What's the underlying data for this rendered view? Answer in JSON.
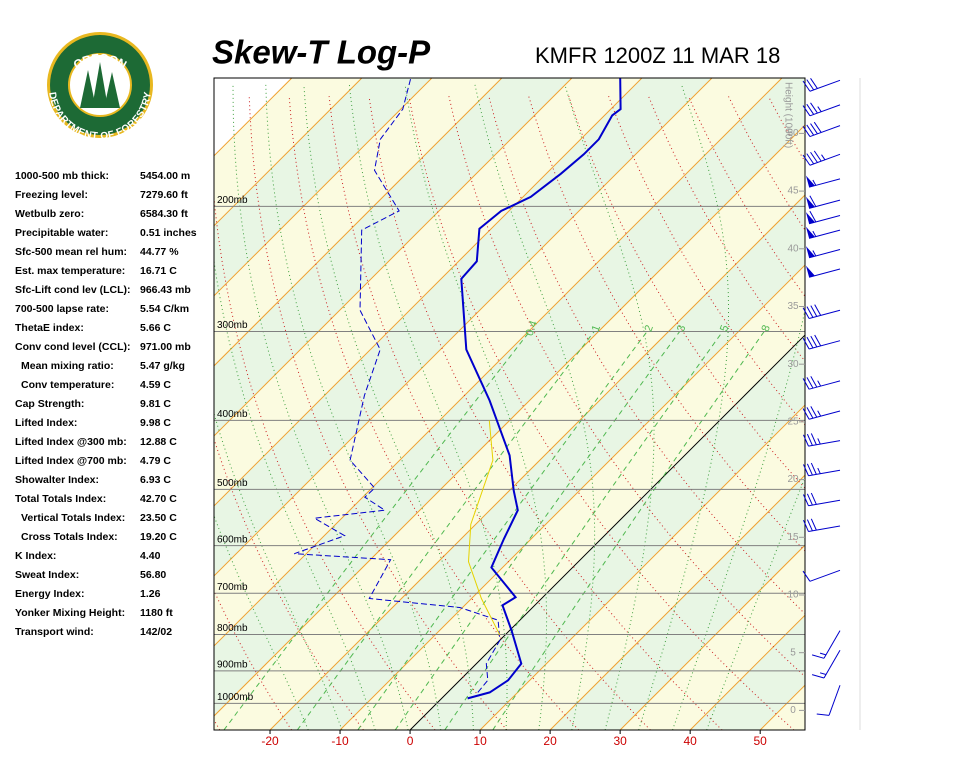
{
  "logo": {
    "top": "OREGON",
    "bottom": "DEPARTMENT OF FORESTRY"
  },
  "stats": [
    {
      "label": "1000-500 mb thick:",
      "value": "5454.00 m"
    },
    {
      "label": "Freezing level:",
      "value": "7279.60 ft"
    },
    {
      "label": "Wetbulb zero:",
      "value": "6584.30 ft"
    },
    {
      "label": "Precipitable water:",
      "value": "0.51 inches"
    },
    {
      "label": "Sfc-500 mean rel hum:",
      "value": "44.77 %"
    },
    {
      "label": "Est. max temperature:",
      "value": "16.71 C"
    },
    {
      "label": "Sfc-Lift cond lev (LCL):",
      "value": "966.43 mb"
    },
    {
      "label": "700-500 lapse rate:",
      "value": "5.54 C/km"
    },
    {
      "label": "ThetaE index:",
      "value": "5.66 C"
    },
    {
      "label": "Conv cond level (CCL):",
      "value": "971.00 mb"
    },
    {
      "label": "Mean mixing ratio:",
      "value": "5.47 g/kg"
    },
    {
      "label": "Conv temperature:",
      "value": "4.59 C"
    },
    {
      "label": "Cap Strength:",
      "value": "9.81 C"
    },
    {
      "label": "Lifted Index:",
      "value": "9.98 C"
    },
    {
      "label": "Lifted Index @300 mb:",
      "value": "12.88 C"
    },
    {
      "label": "Lifted Index @700 mb:",
      "value": "4.79 C"
    },
    {
      "label": "Showalter Index:",
      "value": "6.93 C"
    },
    {
      "label": "Total Totals Index:",
      "value": "42.70 C"
    },
    {
      "label": "Vertical Totals Index:",
      "value": "23.50 C"
    },
    {
      "label": "Cross Totals Index:",
      "value": "19.20 C"
    },
    {
      "label": "K Index:",
      "value": "4.40"
    },
    {
      "label": "Sweat Index:",
      "value": "56.80"
    },
    {
      "label": "Energy Index:",
      "value": "1.26"
    },
    {
      "label": "Yonker Mixing Height:",
      "value": "1180 ft"
    },
    {
      "label": "Transport wind:",
      "value": "142/02"
    }
  ],
  "chart_data": {
    "type": "skew-t",
    "title": "Skew-T Log-P",
    "subtitle": "KMFR 1200Z 11 MAR 18",
    "xlim": [
      -28,
      56.4
    ],
    "xticks": [
      -20,
      -10,
      0,
      10,
      20,
      30,
      40,
      50
    ],
    "ylim": [
      1090,
      132
    ],
    "log_y": true,
    "yticks": [
      {
        "value": 1000,
        "label": "1000mb"
      },
      {
        "value": 900,
        "label": "900mb"
      },
      {
        "value": 800,
        "label": "800mb"
      },
      {
        "value": 700,
        "label": "700mb"
      },
      {
        "value": 600,
        "label": "600mb"
      },
      {
        "value": 500,
        "label": "500mb"
      },
      {
        "value": 400,
        "label": "400mb"
      },
      {
        "value": 300,
        "label": "300mb"
      },
      {
        "value": 200,
        "label": "200mb"
      }
    ],
    "y2label": "Height (1000ft)",
    "y2lim": [
      -1.7,
      54.8
    ],
    "y2ticks": [
      0,
      5,
      10,
      15,
      20,
      25,
      30,
      35,
      40,
      45,
      50
    ],
    "mixing_ratios": [
      0.4,
      1,
      2,
      3,
      5,
      8
    ],
    "series": [
      {
        "color": "#0000cc",
        "style": "solid",
        "pressure": [
          984,
          965,
          928,
          879,
          790,
          728,
          709,
          644,
          587,
          535,
          502,
          448,
          375,
          318,
          253,
          239,
          215,
          203,
          194,
          180,
          169,
          161,
          149,
          146,
          132
        ],
        "temperature": [
          3.7,
          6.0,
          6.9,
          6.4,
          0.3,
          -4.6,
          -3.9,
          -11.6,
          -13.9,
          -16.0,
          -19.4,
          -25.0,
          -35.7,
          -46.3,
          -57.1,
          -57.4,
          -61.7,
          -61.1,
          -58.9,
          -57.9,
          -57.4,
          -57.4,
          -58.9,
          -58.6,
          -63.1
        ]
      },
      {
        "color": "#0000cc",
        "style": "dashed",
        "pressure": [
          965,
          928,
          879,
          815,
          764,
          733,
          712,
          628,
          616,
          581,
          549,
          535,
          513,
          498,
          455,
          369,
          318,
          280,
          216,
          203,
          178,
          161,
          146,
          132
        ],
        "temperature": [
          4.3,
          4.0,
          1.4,
          0.0,
          -3.1,
          -10.4,
          -24.6,
          -27.1,
          -41.7,
          -37.1,
          -43.9,
          -35.0,
          -39.7,
          -39.6,
          -47.1,
          -54.3,
          -58.6,
          -67.1,
          -78.3,
          -75.7,
          -85.0,
          -88.6,
          -89.7,
          -93.0
        ]
      },
      {
        "color": "#e6d200",
        "style": "solid",
        "pressure": [
          802,
          712,
          632,
          560,
          455,
          400
        ],
        "temperature": [
          -0.7,
          -8.6,
          -15.7,
          -20.7,
          -26.7,
          -32.9
        ]
      }
    ],
    "wind": {
      "pressure": [
        133,
        144,
        154,
        169,
        183,
        196,
        206,
        216,
        230,
        245,
        280,
        309,
        352,
        388,
        427,
        470,
        518,
        563,
        650,
        790,
        842,
        943
      ],
      "direction": [
        250,
        250,
        250,
        250,
        255,
        255,
        255,
        255,
        255,
        255,
        255,
        255,
        255,
        255,
        260,
        260,
        260,
        260,
        250,
        210,
        210,
        200
      ],
      "speed": [
        30,
        35,
        40,
        45,
        55,
        60,
        60,
        55,
        55,
        50,
        40,
        40,
        35,
        35,
        35,
        35,
        30,
        30,
        10,
        15,
        15,
        10
      ]
    }
  }
}
